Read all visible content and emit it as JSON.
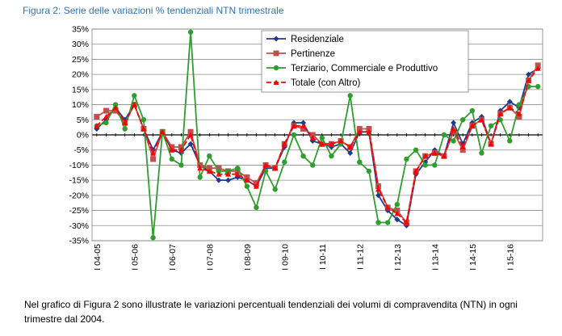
{
  "figure_title": "Figura 2: Serie delle variazioni % tendenziali NTN trimestrale",
  "caption": "Nel grafico di Figura 2 sono illustrate le variazioni percentuali tendenziali dei volumi di compravendita (NTN) in ogni trimestre dal 2004.",
  "chart_data": {
    "type": "line",
    "title": "",
    "xlabel": "",
    "ylabel": "",
    "ylim": [
      -35,
      35
    ],
    "y_ticks": [
      "35%",
      "30%",
      "25%",
      "20%",
      "15%",
      "10%",
      "5%",
      "0%",
      "-5%",
      "-10%",
      "-15%",
      "-20%",
      "-25%",
      "-30%",
      "-35%"
    ],
    "y_tick_values": [
      35,
      30,
      25,
      20,
      15,
      10,
      5,
      0,
      -5,
      -10,
      -15,
      -20,
      -25,
      -30,
      -35
    ],
    "x_tick_labels": [
      "I 04-05",
      "I 05-06",
      "I 06-07",
      "I 07-08",
      "I 08-09",
      "I 09-10",
      "I 10-11",
      "I 11-12",
      "I 12-13",
      "I 13-14",
      "I 14-15",
      "I 15-16"
    ],
    "x_tick_positions": [
      1,
      5,
      9,
      13,
      17,
      21,
      25,
      29,
      33,
      37,
      41,
      45
    ],
    "x": [
      1,
      2,
      3,
      4,
      5,
      6,
      7,
      8,
      9,
      10,
      11,
      12,
      13,
      14,
      15,
      16,
      17,
      18,
      19,
      20,
      21,
      22,
      23,
      24,
      25,
      26,
      27,
      28,
      29,
      30,
      31,
      32,
      33,
      34,
      35,
      36,
      37,
      38,
      39,
      40,
      41,
      42,
      43,
      44,
      45,
      46,
      47,
      48
    ],
    "grid": true,
    "legend_position": "top-right",
    "series": [
      {
        "name": "Residenziale",
        "color": "#1f3a93",
        "marker": "diamond",
        "values": [
          2,
          5,
          9,
          5,
          10,
          2,
          -5,
          1,
          -5,
          -6,
          -3,
          -10,
          -12,
          -15,
          -15,
          -14,
          -15,
          -17,
          -11,
          -11,
          -4,
          4,
          4,
          -2,
          -3,
          -4,
          -3,
          -6,
          1,
          1,
          -20,
          -25,
          -28,
          -30,
          -13,
          -9,
          -5,
          -7,
          4,
          -3,
          4,
          6,
          -3,
          8,
          11,
          9,
          20,
          22
        ]
      },
      {
        "name": "Pertinenze",
        "color": "#c0504d",
        "marker": "square",
        "values": [
          6,
          8,
          8,
          4,
          10,
          2,
          -8,
          1,
          -4,
          -4,
          1,
          -10,
          -11,
          -11,
          -12,
          -12,
          -14,
          -16,
          -10,
          -11,
          -3,
          3,
          2,
          0,
          -3,
          -3,
          -2,
          -4,
          2,
          2,
          -17,
          -24,
          -25,
          -29,
          -12,
          -7,
          -6,
          -7,
          1,
          -5,
          3,
          5,
          -3,
          7,
          9,
          6,
          18,
          23
        ]
      },
      {
        "name": "Terziario, Commerciale e Produttivo",
        "color": "#2e9e2e",
        "marker": "circle",
        "values": [
          3,
          4,
          10,
          2,
          13,
          5,
          -34,
          1,
          -8,
          -10,
          34,
          -14,
          -7,
          -12,
          -12,
          -11,
          -17,
          -24,
          -12,
          -18,
          -9,
          0,
          -7,
          -10,
          -1,
          -7,
          -3,
          13,
          -9,
          -12,
          -29,
          -29,
          -23,
          -8,
          -5,
          -10,
          -10,
          0,
          -2,
          5,
          8,
          -6,
          3,
          5,
          -2,
          10,
          16,
          16
        ]
      },
      {
        "name": "Totale (con Altro)",
        "color": "#ff0000",
        "marker": "triangle",
        "values": [
          3,
          6,
          9,
          4,
          10,
          2,
          -6,
          1,
          -5,
          -5,
          0,
          -11,
          -12,
          -13,
          -13,
          -13,
          -15,
          -17,
          -10,
          -11,
          -3,
          3,
          3,
          -1,
          -3,
          -3,
          -2,
          -4,
          1,
          1,
          -18,
          -24,
          -26,
          -29,
          -12,
          -7,
          -6,
          -7,
          2,
          -4,
          3,
          5,
          -3,
          7,
          9,
          7,
          18,
          22
        ]
      }
    ]
  }
}
